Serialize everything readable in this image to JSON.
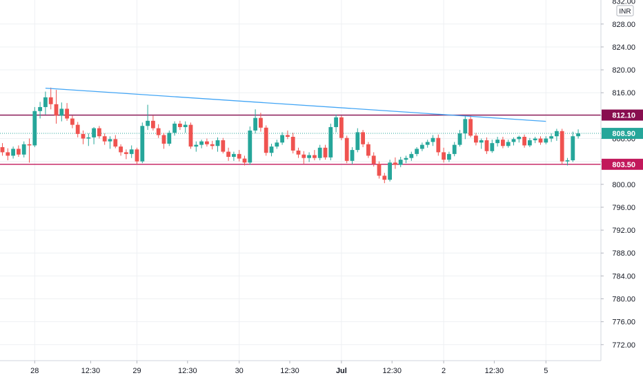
{
  "chart_data": {
    "type": "candlestick",
    "currency": "INR",
    "ylim": [
      769.2,
      832.2
    ],
    "y_ticks": [
      772,
      776,
      780,
      784,
      788,
      792,
      796,
      800,
      804,
      808,
      812,
      816,
      820,
      824,
      828
    ],
    "y_tick_labels": [
      "772.00",
      "776.00",
      "780.00",
      "784.00",
      "788.00",
      "792.00",
      "796.00",
      "800.00",
      "804.00",
      "808.00",
      "812.00",
      "816.00",
      "820.00",
      "824.00",
      "828.00"
    ],
    "top_partial_label": "832.00",
    "x_labels": [
      "28",
      "12:30",
      "29",
      "12:30",
      "30",
      "12:30",
      "Jul",
      "12:30",
      "2",
      "12:30",
      "5"
    ],
    "x_label_bold": [
      false,
      false,
      false,
      false,
      false,
      false,
      true,
      false,
      false,
      false,
      false
    ],
    "x_label_index": [
      6,
      16.4,
      25,
      34.4,
      44,
      53.4,
      63,
      72.4,
      82,
      91.4,
      101
    ],
    "day_separator_index": [
      6,
      25,
      44,
      63,
      82,
      101
    ],
    "price_levels": [
      {
        "price": 812.1,
        "label": "812.10",
        "color": "#880e4f"
      },
      {
        "price": 803.5,
        "label": "803.50",
        "color": "#c2185b"
      }
    ],
    "last_price": {
      "price": 808.9,
      "label": "808.90",
      "color": "#26a69a"
    },
    "trendline": {
      "from": [
        8,
        816.8
      ],
      "to": [
        101,
        811.0
      ],
      "color": "#42a5f5"
    },
    "colors": {
      "up": "#26a69a",
      "down": "#ef5350",
      "grid": "#eef0f3",
      "support": "#c2185b",
      "resistance": "#880e4f"
    },
    "candles": [
      [
        806.5,
        807.2,
        805.0,
        805.6
      ],
      [
        805.6,
        806.3,
        804.2,
        805.0
      ],
      [
        805.0,
        806.6,
        804.5,
        806.2
      ],
      [
        806.2,
        806.8,
        804.8,
        805.2
      ],
      [
        805.2,
        807.5,
        804.7,
        807.0
      ],
      [
        807.0,
        808.0,
        803.8,
        806.8
      ],
      [
        806.8,
        813.5,
        806.5,
        812.8
      ],
      [
        812.8,
        814.4,
        811.5,
        813.5
      ],
      [
        813.5,
        816.2,
        812.2,
        815.2
      ],
      [
        815.2,
        816.9,
        813.1,
        814.0
      ],
      [
        814.0,
        816.5,
        810.6,
        812.0
      ],
      [
        812.0,
        814.3,
        811.0,
        813.2
      ],
      [
        813.2,
        814.2,
        811.1,
        811.5
      ],
      [
        811.5,
        812.0,
        809.8,
        810.4
      ],
      [
        810.4,
        810.9,
        808.2,
        808.8
      ],
      [
        808.8,
        809.4,
        807.0,
        808.0
      ],
      [
        808.0,
        808.9,
        806.7,
        808.2
      ],
      [
        808.2,
        810.0,
        807.0,
        809.8
      ],
      [
        809.8,
        810.2,
        808.0,
        808.4
      ],
      [
        808.4,
        808.9,
        806.9,
        807.5
      ],
      [
        807.5,
        808.4,
        806.2,
        807.9
      ],
      [
        807.9,
        808.6,
        806.3,
        806.6
      ],
      [
        806.6,
        807.0,
        805.0,
        805.6
      ],
      [
        805.6,
        806.1,
        804.4,
        805.3
      ],
      [
        805.3,
        806.8,
        804.6,
        806.1
      ],
      [
        806.1,
        806.4,
        803.5,
        804.0
      ],
      [
        804.0,
        810.8,
        803.7,
        810.2
      ],
      [
        810.2,
        813.9,
        809.5,
        811.1
      ],
      [
        811.1,
        812.0,
        809.4,
        809.8
      ],
      [
        809.8,
        810.5,
        808.1,
        808.6
      ],
      [
        808.6,
        809.0,
        806.2,
        807.1
      ],
      [
        807.1,
        809.4,
        806.7,
        809.0
      ],
      [
        809.0,
        811.0,
        808.5,
        810.6
      ],
      [
        810.6,
        811.1,
        809.5,
        810.0
      ],
      [
        810.0,
        811.0,
        809.0,
        810.4
      ],
      [
        810.4,
        810.8,
        806.2,
        806.6
      ],
      [
        806.6,
        807.5,
        805.7,
        806.9
      ],
      [
        806.9,
        807.8,
        806.3,
        807.5
      ],
      [
        807.5,
        808.0,
        806.6,
        807.0
      ],
      [
        807.0,
        807.6,
        806.1,
        806.7
      ],
      [
        806.7,
        808.2,
        805.7,
        807.7
      ],
      [
        807.7,
        808.1,
        805.4,
        805.7
      ],
      [
        805.7,
        806.4,
        804.1,
        804.8
      ],
      [
        804.8,
        805.7,
        804.1,
        805.3
      ],
      [
        805.3,
        806.0,
        804.0,
        804.5
      ],
      [
        804.5,
        805.0,
        803.3,
        803.8
      ],
      [
        803.8,
        810.1,
        803.4,
        809.4
      ],
      [
        809.4,
        813.1,
        808.9,
        811.6
      ],
      [
        811.6,
        812.5,
        809.2,
        809.9
      ],
      [
        809.9,
        810.3,
        805.0,
        805.5
      ],
      [
        805.5,
        807.1,
        804.9,
        806.6
      ],
      [
        806.6,
        807.8,
        806.2,
        807.3
      ],
      [
        807.3,
        809.1,
        806.9,
        808.6
      ],
      [
        808.6,
        809.4,
        807.9,
        808.3
      ],
      [
        808.3,
        809.0,
        805.4,
        805.9
      ],
      [
        805.9,
        806.4,
        804.6,
        805.2
      ],
      [
        805.2,
        805.8,
        803.6,
        804.6
      ],
      [
        804.6,
        805.6,
        803.9,
        805.1
      ],
      [
        805.1,
        806.0,
        804.2,
        804.6
      ],
      [
        804.6,
        806.9,
        804.2,
        806.4
      ],
      [
        806.4,
        806.9,
        804.3,
        804.7
      ],
      [
        804.7,
        810.6,
        804.2,
        810.0
      ],
      [
        810.0,
        812.2,
        809.1,
        811.7
      ],
      [
        811.7,
        812.0,
        807.7,
        808.1
      ],
      [
        808.1,
        808.5,
        803.7,
        804.1
      ],
      [
        804.1,
        806.5,
        803.5,
        806.0
      ],
      [
        806.0,
        809.8,
        805.6,
        809.1
      ],
      [
        809.1,
        809.5,
        806.5,
        807.0
      ],
      [
        807.0,
        807.4,
        804.6,
        805.0
      ],
      [
        805.0,
        805.6,
        803.1,
        803.6
      ],
      [
        803.6,
        804.0,
        801.0,
        801.5
      ],
      [
        801.5,
        802.0,
        800.2,
        800.8
      ],
      [
        800.8,
        804.3,
        800.5,
        803.8
      ],
      [
        803.8,
        804.7,
        802.7,
        803.4
      ],
      [
        803.4,
        804.8,
        803.0,
        804.3
      ],
      [
        804.3,
        805.0,
        803.7,
        804.6
      ],
      [
        804.6,
        805.7,
        804.1,
        805.3
      ],
      [
        805.3,
        806.5,
        804.9,
        806.2
      ],
      [
        806.2,
        807.3,
        805.8,
        806.9
      ],
      [
        806.9,
        807.8,
        806.4,
        807.4
      ],
      [
        807.4,
        808.6,
        806.7,
        808.1
      ],
      [
        808.1,
        808.7,
        805.0,
        805.6
      ],
      [
        805.6,
        806.4,
        803.8,
        804.3
      ],
      [
        804.3,
        805.7,
        803.9,
        805.3
      ],
      [
        805.3,
        807.4,
        804.9,
        806.9
      ],
      [
        806.9,
        809.5,
        806.6,
        808.9
      ],
      [
        808.9,
        812.0,
        807.9,
        811.4
      ],
      [
        811.4,
        812.0,
        808.2,
        808.5
      ],
      [
        808.5,
        809.0,
        806.8,
        807.3
      ],
      [
        807.3,
        808.0,
        806.2,
        807.7
      ],
      [
        807.7,
        808.2,
        805.3,
        805.8
      ],
      [
        805.8,
        807.8,
        805.5,
        807.2
      ],
      [
        807.2,
        808.3,
        806.6,
        807.8
      ],
      [
        807.8,
        808.3,
        806.3,
        806.7
      ],
      [
        806.7,
        807.8,
        806.4,
        807.4
      ],
      [
        807.4,
        808.2,
        806.8,
        807.9
      ],
      [
        807.9,
        808.5,
        807.3,
        808.3
      ],
      [
        808.3,
        808.7,
        806.4,
        806.8
      ],
      [
        806.8,
        808.1,
        806.5,
        807.7
      ],
      [
        807.7,
        808.3,
        807.2,
        808.0
      ],
      [
        808.0,
        808.4,
        806.9,
        807.3
      ],
      [
        807.3,
        808.4,
        807.0,
        808.0
      ],
      [
        808.0,
        808.9,
        807.4,
        808.4
      ],
      [
        808.4,
        809.7,
        807.6,
        809.3
      ],
      [
        809.3,
        809.7,
        803.5,
        804.0
      ],
      [
        804.0,
        804.6,
        803.3,
        804.2
      ],
      [
        804.2,
        809.2,
        803.9,
        808.4
      ],
      [
        808.4,
        809.6,
        808.0,
        808.9
      ]
    ]
  }
}
